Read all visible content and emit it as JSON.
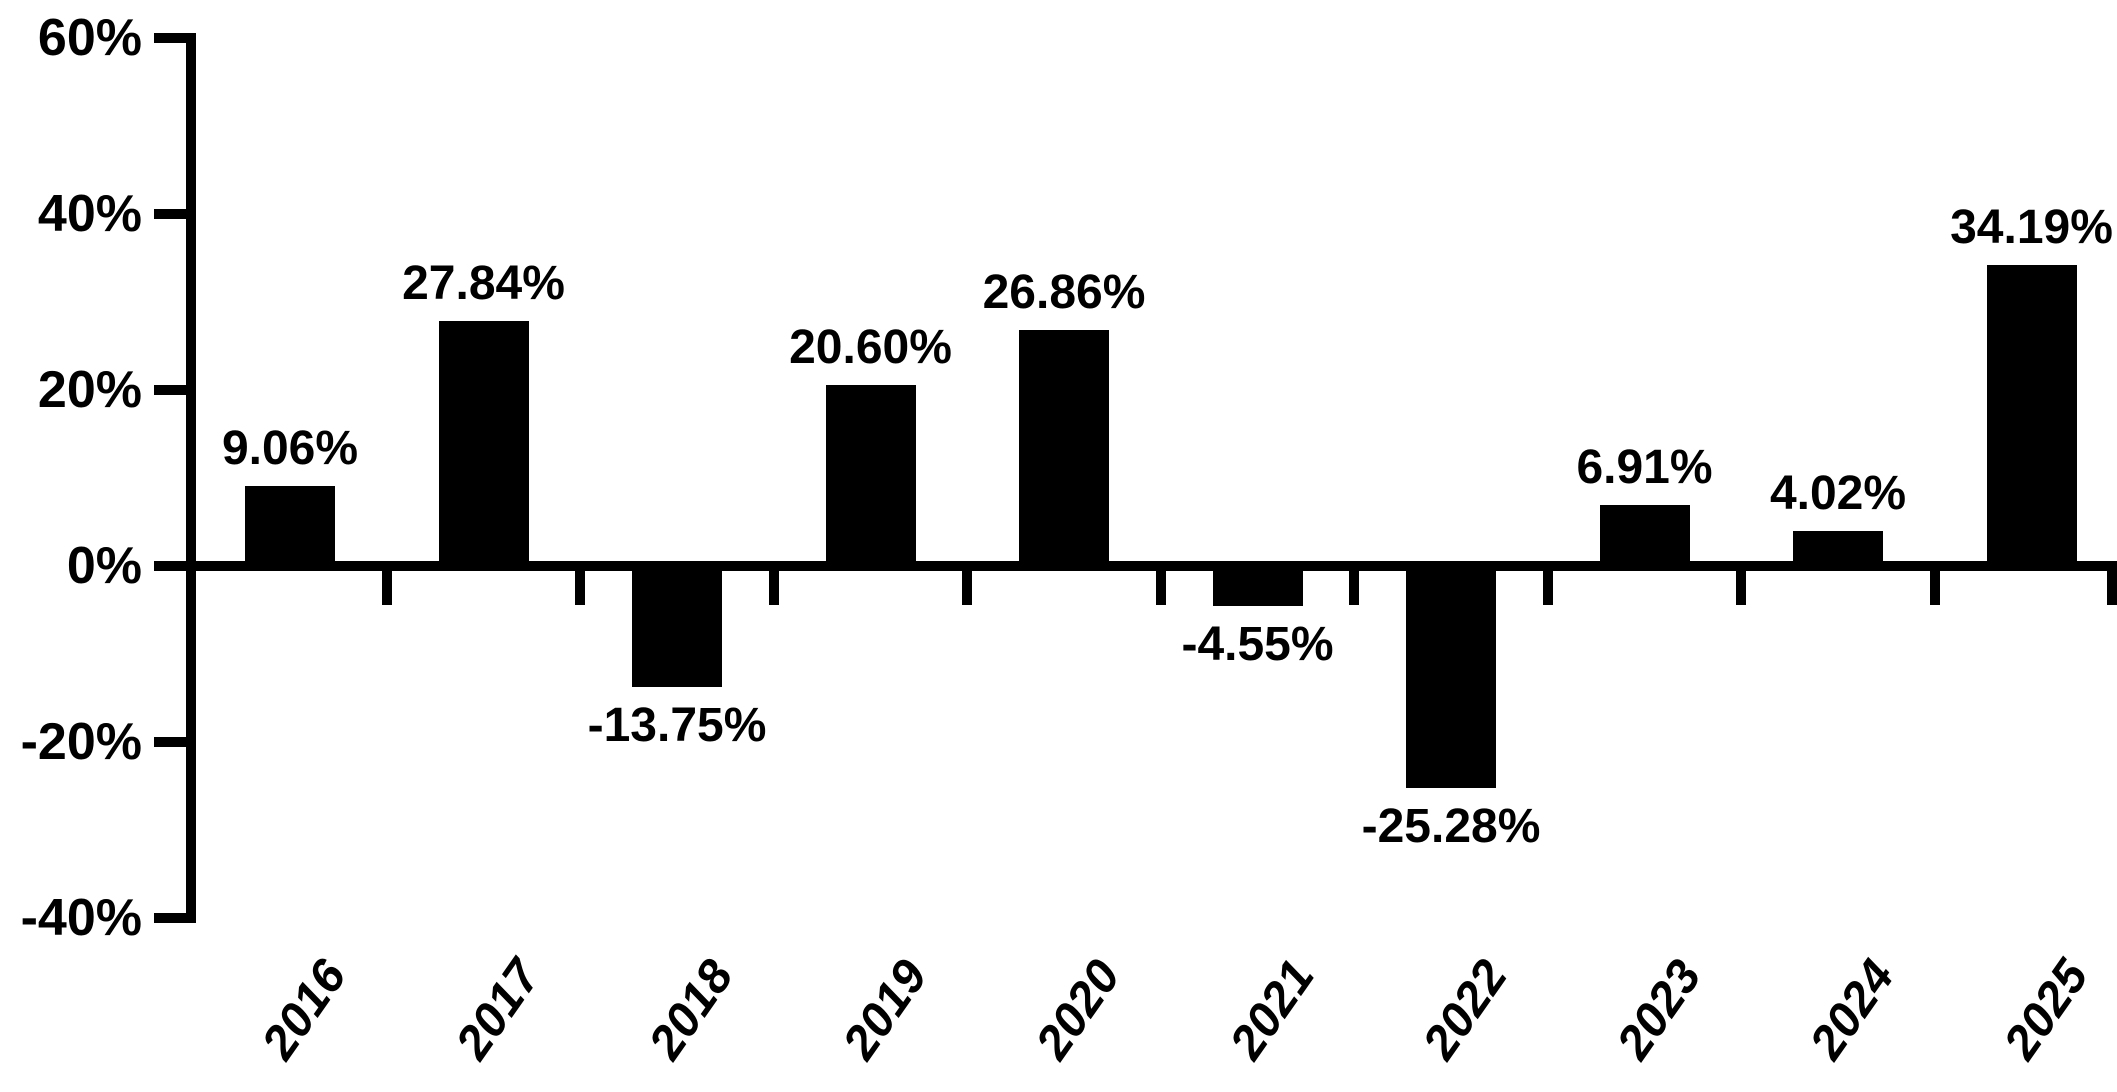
{
  "chart_data": {
    "type": "bar",
    "title": "",
    "xlabel": "",
    "ylabel": "",
    "categories": [
      "2016",
      "2017",
      "2018",
      "2019",
      "2020",
      "2021",
      "2022",
      "2023",
      "2024",
      "2025"
    ],
    "values": [
      9.06,
      27.84,
      -13.75,
      20.6,
      26.86,
      -4.55,
      -25.28,
      6.91,
      4.02,
      34.19
    ],
    "value_labels": [
      "9.06%",
      "27.84%",
      "-13.75%",
      "20.60%",
      "26.86%",
      "-4.55%",
      "-25.28%",
      "6.91%",
      "4.02%",
      "34.19%"
    ],
    "y_ticks": [
      {
        "value": 60,
        "label": "60%"
      },
      {
        "value": 40,
        "label": "40%"
      },
      {
        "value": 20,
        "label": "20%"
      },
      {
        "value": 0,
        "label": "0%"
      },
      {
        "value": -20,
        "label": "-20%"
      },
      {
        "value": -40,
        "label": "-40%"
      }
    ],
    "ylim": [
      -40,
      60
    ],
    "y_tick_interval": 20,
    "grid": false,
    "legend": "none",
    "bar_color": "#000000",
    "axis_color": "#000000",
    "text_color": "#000000",
    "background_color": "#ffffff"
  }
}
